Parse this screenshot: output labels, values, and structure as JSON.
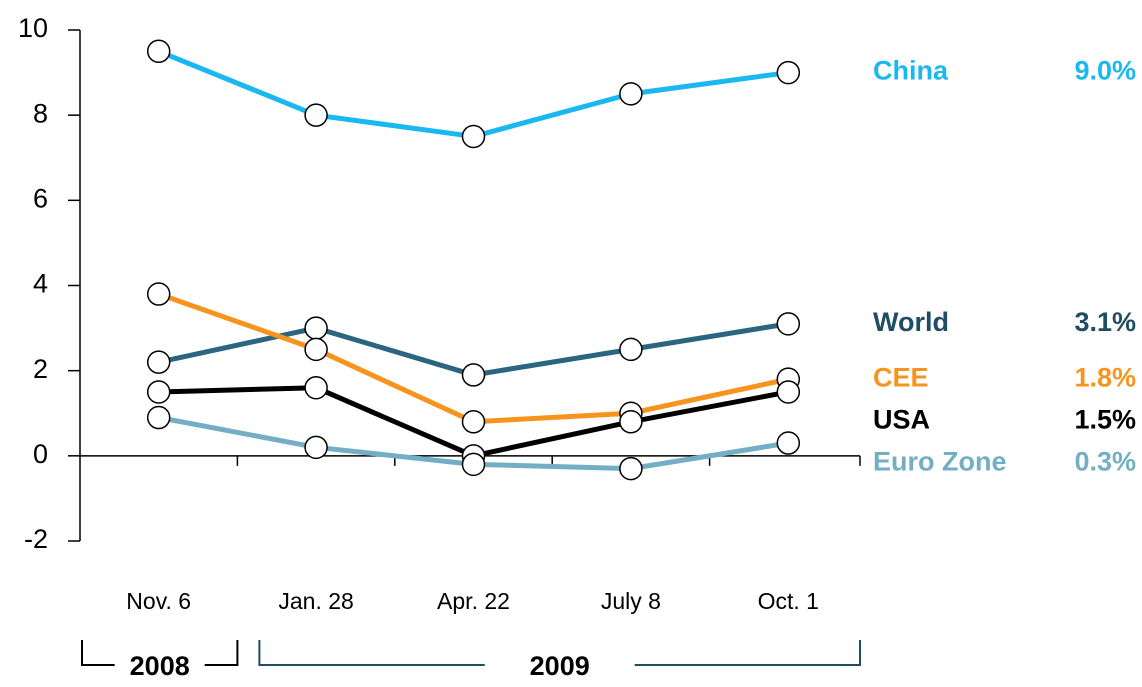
{
  "chart_data": {
    "type": "line",
    "categories": [
      "Nov. 6",
      "Jan. 28",
      "Apr. 22",
      "July 8",
      "Oct. 1"
    ],
    "groups": [
      {
        "label": "2008",
        "start": 0,
        "end": 0
      },
      {
        "label": "2009",
        "start": 1,
        "end": 4
      }
    ],
    "series": [
      {
        "name": "China",
        "color": "#1ab8f0",
        "values": [
          9.5,
          8.0,
          7.5,
          8.5,
          9.0
        ],
        "value_labels": [
          null,
          null,
          null,
          null,
          "9.0%"
        ]
      },
      {
        "name": "World",
        "color": "#2b6580",
        "label_color": "#1f4e63",
        "values": [
          2.2,
          3.0,
          1.9,
          2.5,
          3.1
        ],
        "value_labels": [
          null,
          null,
          null,
          null,
          "3.1%"
        ]
      },
      {
        "name": "CEE",
        "color": "#f7941d",
        "values": [
          3.8,
          2.5,
          0.8,
          1.0,
          1.8
        ],
        "value_labels": [
          null,
          null,
          null,
          null,
          "1.8%"
        ]
      },
      {
        "name": "USA",
        "color": "#000000",
        "values": [
          1.5,
          1.6,
          0.0,
          0.8,
          1.5
        ],
        "value_labels": [
          null,
          null,
          null,
          null,
          "1.5%"
        ]
      },
      {
        "name": "Euro Zone",
        "color": "#74aec4",
        "values": [
          0.9,
          0.2,
          -0.2,
          -0.3,
          0.3
        ],
        "value_labels": [
          null,
          null,
          null,
          null,
          "0.3%"
        ]
      }
    ],
    "ylim": [
      -2,
      10
    ],
    "yticks": [
      -2,
      0,
      2,
      4,
      6,
      8,
      10
    ]
  }
}
